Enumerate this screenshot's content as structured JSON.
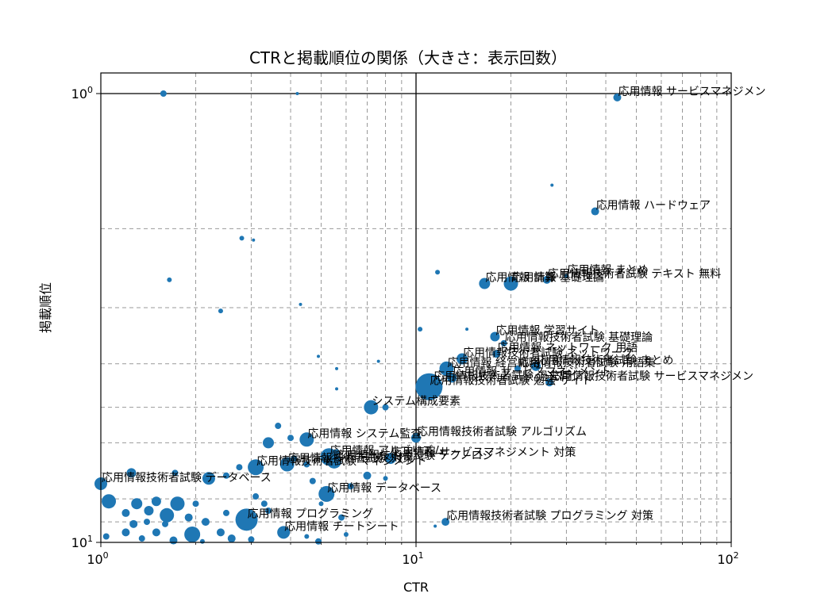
{
  "chart_data": {
    "type": "scatter",
    "title": "CTRと掲載順位の関係（大きさ：表示回数）",
    "xlabel": "CTR",
    "ylabel": "掲載順位",
    "x_scale": "log",
    "y_scale": "log",
    "y_inverted": true,
    "xlim": [
      1,
      100
    ],
    "ylim": [
      10,
      1
    ],
    "grid": "both",
    "x_ticks": [
      {
        "value": 1,
        "base": "10",
        "exp": "0"
      },
      {
        "value": 10,
        "base": "10",
        "exp": "1"
      },
      {
        "value": 100,
        "base": "10",
        "exp": "2"
      }
    ],
    "y_ticks": [
      {
        "value": 1,
        "base": "10",
        "exp": "0"
      },
      {
        "value": 10,
        "base": "10",
        "exp": "1"
      }
    ],
    "reference_lines": {
      "x": 10,
      "y": 1
    },
    "series": [
      {
        "color": "#1f77b4",
        "points": [
          {
            "x": 43.5,
            "y": 1.02,
            "s": 5,
            "label": "応用情報 サービスマネジメン"
          },
          {
            "x": 37,
            "y": 1.83,
            "s": 5,
            "label": "応用情報 ハードウェア"
          },
          {
            "x": 30,
            "y": 2.55,
            "s": 3,
            "label": "応用情報 まとめ"
          },
          {
            "x": 26,
            "y": 2.6,
            "s": 5,
            "label": "応用情報技術者試験 テキスト 無料"
          },
          {
            "x": 20,
            "y": 2.65,
            "s": 9,
            "label": "応用情報 基礎理論"
          },
          {
            "x": 16.5,
            "y": 2.65,
            "s": 7,
            "label": "応用情報 計算"
          },
          {
            "x": 17.8,
            "y": 3.48,
            "s": 6,
            "label": "応用情報 学習サイト"
          },
          {
            "x": 19,
            "y": 3.6,
            "s": 4,
            "label": "応用情報技術者試験 基礎理論"
          },
          {
            "x": 18,
            "y": 3.8,
            "s": 5,
            "label": "応用情報 ネットワーク 用語"
          },
          {
            "x": 14,
            "y": 3.9,
            "s": 7,
            "label": "応用情報技術者試験 ネットワーク"
          },
          {
            "x": 24,
            "y": 4.05,
            "s": 6,
            "label": "応用情報技術者試験 まとめ"
          },
          {
            "x": 21,
            "y": 4.1,
            "s": 4,
            "label": "応用情報技術者試験 用語集"
          },
          {
            "x": 12.5,
            "y": 4.1,
            "s": 9,
            "label": "応用情報 経営戦略"
          },
          {
            "x": 13,
            "y": 4.3,
            "s": 6,
            "label": "応用情報 サービスマネジメント"
          },
          {
            "x": 26.5,
            "y": 4.4,
            "s": 5,
            "label": "応用情報技術者試験 サービスマネジメン"
          },
          {
            "x": 11.3,
            "y": 4.4,
            "s": 9,
            "label": "応用情報技術者試験 過去問"
          },
          {
            "x": 11,
            "y": 4.5,
            "s": 17,
            "label": "応用情報技術者試験 勉強 サイト"
          },
          {
            "x": 7.2,
            "y": 5.0,
            "s": 9,
            "label": "システム構成要素"
          },
          {
            "x": 4.5,
            "y": 5.9,
            "s": 9,
            "label": "応用情報 システム監査"
          },
          {
            "x": 10,
            "y": 5.85,
            "s": 6,
            "label": "応用情報技術者試験 アルゴリズム"
          },
          {
            "x": 5.3,
            "y": 6.45,
            "s": 11,
            "label": "応用情報 アルゴリズム"
          },
          {
            "x": 8.3,
            "y": 6.5,
            "s": 7,
            "label": "応用情報 サービスマネジメント 対策"
          },
          {
            "x": 5.5,
            "y": 6.6,
            "s": 9,
            "label": "応用情報技術者試験 テクノロジ"
          },
          {
            "x": 3.9,
            "y": 6.7,
            "s": 9,
            "label": "応用情報技術者試験 対策"
          },
          {
            "x": 3.1,
            "y": 6.8,
            "s": 10,
            "label": "応用情報技術者試験 マネジメント"
          },
          {
            "x": 1,
            "y": 7.4,
            "s": 8,
            "label": "応用情報技術者試験 データベース"
          },
          {
            "x": 5.2,
            "y": 7.8,
            "s": 10,
            "label": "応用情報 データベース"
          },
          {
            "x": 2.9,
            "y": 8.9,
            "s": 14,
            "label": "応用情報 プログラミング"
          },
          {
            "x": 12.4,
            "y": 9.0,
            "s": 5,
            "label": "応用情報技術者試験 プログラミング 対策"
          },
          {
            "x": 3.8,
            "y": 9.5,
            "s": 8,
            "label": "応用情報 チートシート"
          },
          {
            "x": 1.58,
            "y": 1.0,
            "s": 4
          },
          {
            "x": 4.2,
            "y": 1.0,
            "s": 2
          },
          {
            "x": 27,
            "y": 1.6,
            "s": 2
          },
          {
            "x": 2.8,
            "y": 2.1,
            "s": 3
          },
          {
            "x": 3.05,
            "y": 2.12,
            "s": 2
          },
          {
            "x": 1.65,
            "y": 2.6,
            "s": 3
          },
          {
            "x": 11.7,
            "y": 2.5,
            "s": 3
          },
          {
            "x": 2.4,
            "y": 3.05,
            "s": 3
          },
          {
            "x": 4.3,
            "y": 2.95,
            "s": 2
          },
          {
            "x": 10.3,
            "y": 3.35,
            "s": 3
          },
          {
            "x": 14.5,
            "y": 3.35,
            "s": 2
          },
          {
            "x": 4.9,
            "y": 3.85,
            "s": 2
          },
          {
            "x": 5.6,
            "y": 4.1,
            "s": 2
          },
          {
            "x": 7.6,
            "y": 3.95,
            "s": 2
          },
          {
            "x": 5.6,
            "y": 4.55,
            "s": 2
          },
          {
            "x": 8.0,
            "y": 5.0,
            "s": 4
          },
          {
            "x": 3.65,
            "y": 5.5,
            "s": 4
          },
          {
            "x": 3.4,
            "y": 6.0,
            "s": 7
          },
          {
            "x": 4.0,
            "y": 5.85,
            "s": 4
          },
          {
            "x": 5.6,
            "y": 6.3,
            "s": 4
          },
          {
            "x": 4.1,
            "y": 6.5,
            "s": 4
          },
          {
            "x": 4.5,
            "y": 6.7,
            "s": 4
          },
          {
            "x": 2.75,
            "y": 6.8,
            "s": 4
          },
          {
            "x": 1.25,
            "y": 7.0,
            "s": 6
          },
          {
            "x": 1.72,
            "y": 7.0,
            "s": 4
          },
          {
            "x": 2.2,
            "y": 7.2,
            "s": 8
          },
          {
            "x": 2.5,
            "y": 7.1,
            "s": 4
          },
          {
            "x": 4.7,
            "y": 7.3,
            "s": 4
          },
          {
            "x": 7.0,
            "y": 7.1,
            "s": 5
          },
          {
            "x": 8.0,
            "y": 7.2,
            "s": 3
          },
          {
            "x": 6.2,
            "y": 7.5,
            "s": 4
          },
          {
            "x": 3.1,
            "y": 7.9,
            "s": 4
          },
          {
            "x": 3.3,
            "y": 8.2,
            "s": 4
          },
          {
            "x": 1.06,
            "y": 8.1,
            "s": 9
          },
          {
            "x": 1.3,
            "y": 8.2,
            "s": 7
          },
          {
            "x": 1.5,
            "y": 8.1,
            "s": 6
          },
          {
            "x": 1.75,
            "y": 8.2,
            "s": 9
          },
          {
            "x": 2.0,
            "y": 8.2,
            "s": 4
          },
          {
            "x": 5.0,
            "y": 8.2,
            "s": 3
          },
          {
            "x": 1.2,
            "y": 8.6,
            "s": 5
          },
          {
            "x": 1.42,
            "y": 8.5,
            "s": 6
          },
          {
            "x": 1.62,
            "y": 8.7,
            "s": 9
          },
          {
            "x": 1.9,
            "y": 8.8,
            "s": 5
          },
          {
            "x": 2.5,
            "y": 8.6,
            "s": 4
          },
          {
            "x": 3.4,
            "y": 8.5,
            "s": 4
          },
          {
            "x": 5.8,
            "y": 8.8,
            "s": 4
          },
          {
            "x": 1.27,
            "y": 9.1,
            "s": 5
          },
          {
            "x": 1.4,
            "y": 9.0,
            "s": 4
          },
          {
            "x": 1.6,
            "y": 9.1,
            "s": 4
          },
          {
            "x": 2.15,
            "y": 9.0,
            "s": 5
          },
          {
            "x": 1.2,
            "y": 9.5,
            "s": 5
          },
          {
            "x": 1.5,
            "y": 9.5,
            "s": 5
          },
          {
            "x": 1.95,
            "y": 9.6,
            "s": 10
          },
          {
            "x": 2.4,
            "y": 9.5,
            "s": 5
          },
          {
            "x": 1.04,
            "y": 9.7,
            "s": 4
          },
          {
            "x": 1.35,
            "y": 9.8,
            "s": 4
          },
          {
            "x": 1.7,
            "y": 9.9,
            "s": 5
          },
          {
            "x": 2.6,
            "y": 9.8,
            "s": 5
          },
          {
            "x": 2.1,
            "y": 9.95,
            "s": 3
          },
          {
            "x": 4.9,
            "y": 9.95,
            "s": 4
          },
          {
            "x": 3.0,
            "y": 9.85,
            "s": 4
          },
          {
            "x": 4.5,
            "y": 9.7,
            "s": 3
          },
          {
            "x": 6.0,
            "y": 9.6,
            "s": 3
          },
          {
            "x": 11.5,
            "y": 9.2,
            "s": 2
          }
        ]
      }
    ]
  }
}
